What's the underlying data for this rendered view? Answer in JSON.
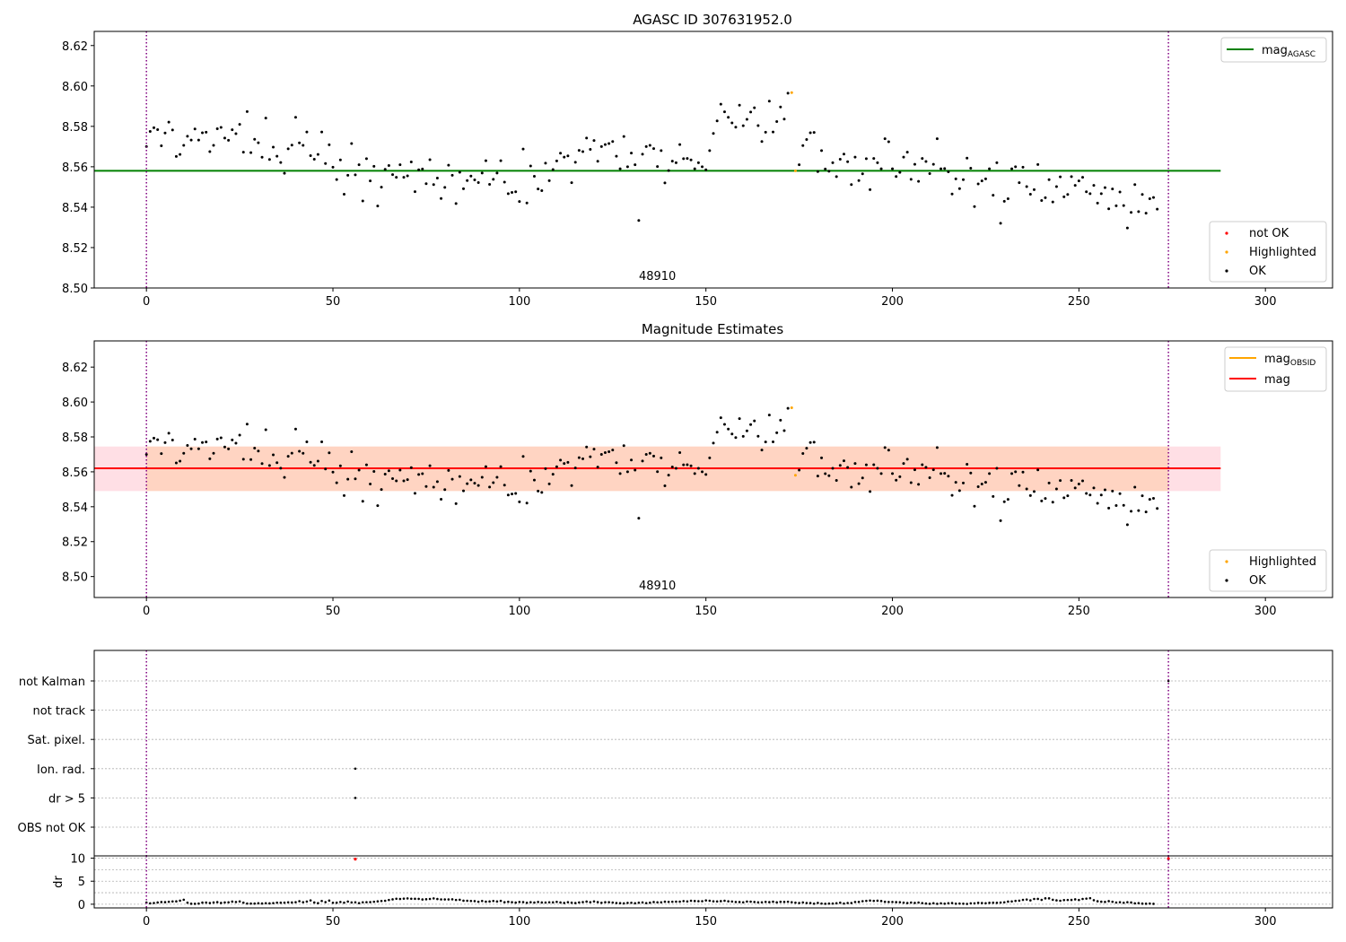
{
  "colors": {
    "ok": "#000000",
    "highlighted": "#ffa500",
    "not_ok": "#ff0000",
    "mag_agasc_line": "#008000",
    "mag_line": "#ff0000",
    "mag_obsid_line": "#ffa500",
    "band_outer": "#ffc0cb",
    "band_inner": "#ffc896",
    "obs_boundary": "#800080",
    "grid": "#b0b0b0"
  },
  "chart_data": [
    {
      "type": "scatter",
      "title": "AGASC ID 307631952.0",
      "xlim": [
        -14,
        318
      ],
      "ylim": [
        8.5,
        8.627
      ],
      "xticks": [
        0,
        50,
        100,
        150,
        200,
        250,
        300
      ],
      "yticks": [
        8.5,
        8.52,
        8.54,
        8.56,
        8.58,
        8.6,
        8.62
      ],
      "ytick_labels": [
        "8.50",
        "8.52",
        "8.54",
        "8.56",
        "8.58",
        "8.60",
        "8.62"
      ],
      "obs_boundaries": [
        0,
        274
      ],
      "obsid_label": "48910",
      "obsid_label_x": 137,
      "hline": {
        "name": "mag_AGASC",
        "y": 8.558,
        "x": [
          -14,
          288
        ]
      },
      "legend_lines": [
        {
          "name": "mag",
          "subscript": "AGASC",
          "color_key": "mag_agasc_line"
        }
      ],
      "legend_points": [
        {
          "name": "not OK",
          "color_key": "not_ok"
        },
        {
          "name": "Highlighted",
          "color_key": "highlighted"
        },
        {
          "name": "OK",
          "color_key": "ok"
        }
      ],
      "legend_lines_position": "top-right",
      "legend_points_position": "bottom-right",
      "highlighted_points": [
        {
          "x": 173,
          "y": 8.5965
        },
        {
          "x": 174,
          "y": 8.5968
        }
      ]
    },
    {
      "type": "scatter",
      "title": "Magnitude Estimates",
      "xlim": [
        -14,
        318
      ],
      "ylim": [
        8.488,
        8.635
      ],
      "xticks": [
        0,
        50,
        100,
        150,
        200,
        250,
        300
      ],
      "yticks": [
        8.5,
        8.52,
        8.54,
        8.56,
        8.58,
        8.6,
        8.62
      ],
      "ytick_labels": [
        "8.50",
        "8.52",
        "8.54",
        "8.56",
        "8.58",
        "8.60",
        "8.62"
      ],
      "obs_boundaries": [
        0,
        274
      ],
      "obsid_label": "48910",
      "obsid_label_x": 137,
      "hline": {
        "name": "mag",
        "y": 8.562,
        "x": [
          -14,
          288
        ]
      },
      "band_outer": [
        8.549,
        8.5745
      ],
      "band_inner": [
        8.549,
        8.5745
      ],
      "legend_lines": [
        {
          "name": "mag",
          "subscript": "OBSID",
          "color_key": "mag_obsid_line"
        },
        {
          "name": "mag",
          "subscript": "",
          "color_key": "mag_line"
        }
      ],
      "legend_points": [
        {
          "name": "Highlighted",
          "color_key": "highlighted"
        },
        {
          "name": "OK",
          "color_key": "ok"
        }
      ],
      "legend_lines_position": "top-right",
      "legend_points_position": "bottom-right",
      "highlighted_points": [
        {
          "x": 173,
          "y": 8.5965
        },
        {
          "x": 174,
          "y": 8.5968
        }
      ]
    },
    {
      "type": "scatter",
      "title": "",
      "xlim": [
        -14,
        318
      ],
      "flag_labels": [
        "not Kalman",
        "not track",
        "Sat. pixel.",
        "Ion. rad.",
        "dr > 5",
        "OBS not OK"
      ],
      "obs_boundaries": [
        0,
        274
      ],
      "flag_points": [
        {
          "flag": "not Kalman",
          "x": [
            274
          ]
        },
        {
          "flag": "Ion. rad.",
          "x": [
            56
          ]
        },
        {
          "flag": "dr > 5",
          "x": [
            56
          ]
        }
      ]
    },
    {
      "type": "scatter",
      "title": "",
      "ylabel": "dr",
      "xlim": [
        -14,
        318
      ],
      "ylim": [
        -0.8,
        10.5
      ],
      "xticks": [
        0,
        50,
        100,
        150,
        200,
        250,
        300
      ],
      "yticks": [
        0,
        5,
        10
      ],
      "obs_boundaries": [
        0,
        274
      ],
      "outlier_points": [
        {
          "x": 56,
          "y": 9.8
        },
        {
          "x": 274,
          "y": 9.9
        }
      ]
    }
  ],
  "mag_values": [
    8.57,
    8.5775,
    8.5793,
    8.5784,
    8.5704,
    8.5767,
    8.5821,
    8.5782,
    8.5651,
    8.5661,
    8.5706,
    8.5751,
    8.5732,
    8.5787,
    8.5732,
    8.5768,
    8.5771,
    8.5675,
    8.5706,
    8.5788,
    8.5795,
    8.5742,
    8.5731,
    8.5783,
    8.5764,
    8.581,
    8.5672,
    8.5873,
    8.567,
    8.5736,
    8.5719,
    8.5647,
    8.5841,
    8.5636,
    8.5697,
    8.5652,
    8.5621,
    8.5568,
    8.5689,
    8.5707,
    8.5845,
    8.5718,
    8.5706,
    8.5772,
    8.5655,
    8.5637,
    8.5661,
    8.5772,
    8.5616,
    8.5709,
    8.5598,
    8.5537,
    8.5634,
    8.5464,
    8.5558,
    8.5715,
    8.556,
    8.561,
    8.5431,
    8.564,
    8.553,
    8.5602,
    8.5406,
    8.5499,
    8.5587,
    8.5606,
    8.5561,
    8.5548,
    8.561,
    8.5548,
    8.5555,
    8.5624,
    8.5477,
    8.5585,
    8.5589,
    8.5516,
    8.5635,
    8.5512,
    8.5544,
    8.5443,
    8.5498,
    8.5608,
    8.5558,
    8.5418,
    8.5573,
    8.5491,
    8.5532,
    8.5554,
    8.5535,
    8.5522,
    8.5569,
    8.563,
    8.5513,
    8.5538,
    8.5569,
    8.563,
    8.5524,
    8.5467,
    8.5473,
    8.5476,
    8.5428,
    8.5688,
    8.5421,
    8.5604,
    8.5553,
    8.549,
    8.5482,
    8.5618,
    8.5531,
    8.5586,
    8.5629,
    8.5667,
    8.5648,
    8.5654,
    8.5521,
    8.5622,
    8.5681,
    8.5675,
    8.5742,
    8.5686,
    8.573,
    8.5627,
    8.57,
    8.571,
    8.5715,
    8.5725,
    8.5652,
    8.559,
    8.575,
    8.56,
    8.5668,
    8.561,
    8.5334,
    8.5662,
    8.57,
    8.5706,
    8.569,
    8.5601,
    8.568,
    8.552,
    8.5581,
    8.5628,
    8.562,
    8.571,
    8.564,
    8.5641,
    8.5634,
    8.559,
    8.562,
    8.56,
    8.5585,
    8.568,
    8.5765,
    8.5827,
    8.591,
    8.5872,
    8.5845,
    8.5817,
    8.5796,
    8.5905,
    8.5803,
    8.5835,
    8.5871,
    8.5892,
    8.5804,
    8.5725,
    8.5771,
    8.5925,
    8.5772,
    8.5824,
    8.5896,
    8.5836,
    8.5964,
    8.5967,
    8.558,
    8.561,
    8.5705,
    8.5735,
    8.5768,
    8.577,
    8.5576,
    8.568,
    8.5589,
    8.5578,
    8.562,
    8.5551,
    8.5637,
    8.5663,
    8.5625,
    8.5512,
    8.5648,
    8.5532,
    8.5565,
    8.564,
    8.5487,
    8.5641,
    8.562,
    8.559,
    8.5739,
    8.5724,
    8.559,
    8.5552,
    8.5572,
    8.5648,
    8.5672,
    8.5538,
    8.5612,
    8.5528,
    8.5641,
    8.5626,
    8.5566,
    8.5612,
    8.5739,
    8.559,
    8.5591,
    8.5575,
    8.5465,
    8.554,
    8.5492,
    8.5536,
    8.5643,
    8.5593,
    8.5403,
    8.5515,
    8.553,
    8.554,
    8.559,
    8.5459,
    8.562,
    8.532,
    8.5429,
    8.5442,
    8.559,
    8.56,
    8.5521,
    8.5598,
    8.5502,
    8.5464,
    8.5487,
    8.5611,
    8.5433,
    8.5447,
    8.5536,
    8.5426,
    8.5502,
    8.555,
    8.5451,
    8.5463,
    8.5551,
    8.5508,
    8.553,
    8.5548,
    8.5476,
    8.5467,
    8.5508,
    8.542,
    8.5467,
    8.5497,
    8.5392,
    8.549,
    8.5407,
    8.5475,
    8.5408,
    8.5297,
    8.5374,
    8.5512,
    8.5378,
    8.5463,
    8.537,
    8.5442,
    8.5448,
    8.539
  ],
  "dr_values": [
    0.35,
    0.19,
    0.26,
    0.38,
    0.47,
    0.45,
    0.53,
    0.61,
    0.62,
    0.78,
    0.98,
    0.34,
    0.11,
    0.09,
    0.14,
    0.35,
    0.36,
    0.26,
    0.38,
    0.45,
    0.28,
    0.39,
    0.41,
    0.57,
    0.48,
    0.61,
    0.34,
    0.15,
    0.14,
    0.14,
    0.21,
    0.16,
    0.22,
    0.18,
    0.24,
    0.34,
    0.33,
    0.34,
    0.41,
    0.38,
    0.44,
    0.66,
    0.43,
    0.58,
    0.83,
    0.38,
    0.23,
    0.71,
    0.46,
    0.79,
    0.32,
    0.33,
    0.49,
    0.34,
    0.58,
    0.39,
    0.42,
    0.24,
    0.42,
    0.44,
    0.46,
    0.54,
    0.62,
    0.71,
    0.75,
    0.92,
    1.06,
    1.19,
    1.14,
    1.21,
    1.26,
    1.19,
    1.18,
    1.17,
    1.03,
    1.08,
    1.15,
    1.26,
    1.13,
    1.05,
    1.04,
    1.04,
    1.07,
    0.93,
    0.97,
    0.77,
    0.75,
    0.71,
    0.68,
    0.54,
    0.7,
    0.56,
    0.6,
    0.71,
    0.6,
    0.73,
    0.43,
    0.52,
    0.44,
    0.35,
    0.49,
    0.46,
    0.31,
    0.43,
    0.36,
    0.48,
    0.38,
    0.37,
    0.42,
    0.4,
    0.51,
    0.38,
    0.28,
    0.43,
    0.33,
    0.25,
    0.39,
    0.46,
    0.57,
    0.44,
    0.61,
    0.45,
    0.32,
    0.43,
    0.44,
    0.37,
    0.26,
    0.23,
    0.18,
    0.29,
    0.31,
    0.21,
    0.33,
    0.39,
    0.24,
    0.33,
    0.47,
    0.41,
    0.42,
    0.55,
    0.51,
    0.54,
    0.56,
    0.56,
    0.68,
    0.61,
    0.75,
    0.69,
    0.66,
    0.66,
    0.82,
    0.76,
    0.63,
    0.61,
    0.67,
    0.76,
    0.63,
    0.59,
    0.48,
    0.47,
    0.41,
    0.58,
    0.56,
    0.48,
    0.4,
    0.42,
    0.51,
    0.45,
    0.55,
    0.4,
    0.52,
    0.5,
    0.54,
    0.43,
    0.34,
    0.26,
    0.39,
    0.26,
    0.25,
    0.12,
    0.29,
    0.15,
    0.1,
    0.14,
    0.15,
    0.21,
    0.33,
    0.15,
    0.27,
    0.26,
    0.48,
    0.5,
    0.66,
    0.73,
    0.8,
    0.73,
    0.77,
    0.69,
    0.52,
    0.49,
    0.49,
    0.45,
    0.43,
    0.34,
    0.25,
    0.36,
    0.28,
    0.37,
    0.24,
    0.16,
    0.1,
    0.22,
    0.09,
    0.2,
    0.12,
    0.21,
    0.25,
    0.12,
    0.15,
    0.12,
    0.07,
    0.2,
    0.2,
    0.3,
    0.25,
    0.22,
    0.3,
    0.33,
    0.3,
    0.36,
    0.42,
    0.57,
    0.61,
    0.73,
    0.78,
    0.95,
    1.02,
    0.84,
    1.15,
    1.16,
    0.95,
    1.28,
    1.28,
    0.97,
    0.84,
    0.76,
    0.9,
    0.93,
    0.94,
    1.06,
    0.92,
    1.15,
    1.22,
    1.31,
    0.87,
    0.64,
    0.55,
    0.5,
    0.67,
    0.53,
    0.37,
    0.43,
    0.32,
    0.44,
    0.38,
    0.19,
    0.23,
    0.13,
    0.11,
    0.15,
    0.08
  ]
}
